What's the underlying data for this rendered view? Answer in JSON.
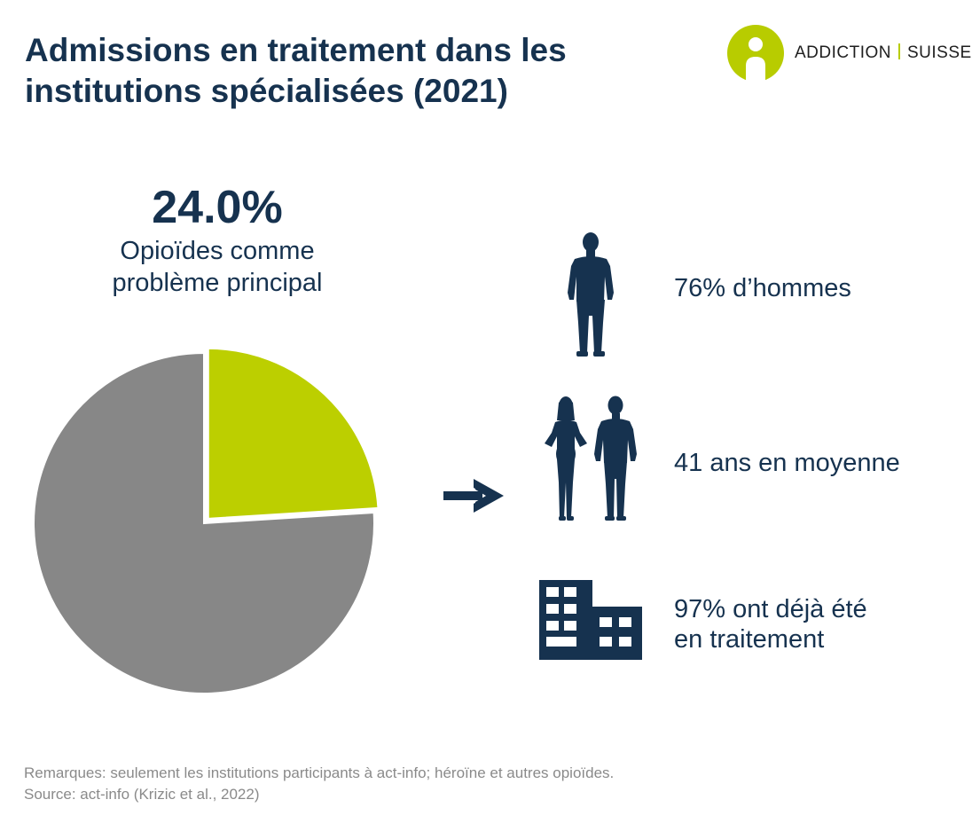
{
  "title": "Admissions en traitement dans les institutions spécialisées (2021)",
  "logo": {
    "left_text": "ADDICTION",
    "right_text": "SUISSE",
    "accent_color": "#b8cc00"
  },
  "headline": {
    "value": "24.0%",
    "caption_line1": "Opioïdes comme",
    "caption_line2": "problème principal"
  },
  "stats": [
    {
      "icon": "man-silhouette-icon",
      "line1": "76% d’hommes",
      "line2": ""
    },
    {
      "icon": "couple-silhouette-icon",
      "line1": "41 ans en moyenne",
      "line2": ""
    },
    {
      "icon": "building-icon",
      "line1": "97% ont déjà été",
      "line2": "en traitement"
    }
  ],
  "notes": {
    "remarks": "Remarques: seulement les institutions participants à act-info; héroïne et autres opioïdes.",
    "source": "Source: act-info (Krizic et al., 2022)"
  },
  "colors": {
    "navy": "#16324f",
    "accent": "#bccf00",
    "rest": "#878787",
    "note_grey": "#8a8a8a"
  },
  "chart_data": {
    "type": "pie",
    "title": "",
    "slices": [
      {
        "name": "",
        "value": 24.0,
        "color": "#bccf00",
        "exploded": true
      },
      {
        "name": "",
        "value": 76.0,
        "color": "#878787",
        "exploded": false
      }
    ],
    "legend": "none",
    "data_labels": [
      "24.0%"
    ]
  }
}
